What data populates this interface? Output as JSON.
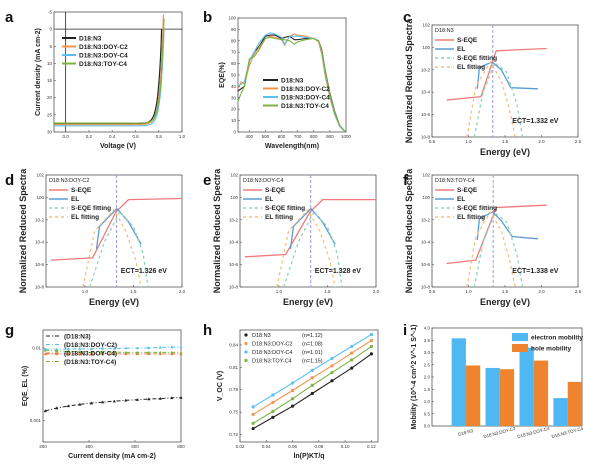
{
  "figure": {
    "panel_labels": [
      "a",
      "b",
      "c",
      "d",
      "e",
      "f",
      "g",
      "h",
      "i"
    ]
  },
  "chart_data": [
    {
      "id": "a",
      "type": "line",
      "xlabel": "Voltage (V)",
      "ylabel": "Current density (mA cm-2)",
      "xlim": [
        -0.1,
        1.0
      ],
      "ylim": [
        30,
        -5
      ],
      "x_ticks": [
        "0.0",
        "0.2",
        "0.4",
        "0.6",
        "0.8",
        "1.0"
      ],
      "y_ticks": [
        "-5",
        "0",
        "5",
        "10",
        "15",
        "20",
        "25",
        "30"
      ],
      "legend": "top-left",
      "series": [
        {
          "name": "D18:N3",
          "color": "#222222",
          "jsc": 27.6,
          "voc": 0.825
        },
        {
          "name": "D18:N3:DOY-C2",
          "color": "#f0944e",
          "jsc": 27.8,
          "voc": 0.836
        },
        {
          "name": "D18:N3:DOY-C4",
          "color": "#5bc0f0",
          "jsc": 28.2,
          "voc": 0.845
        },
        {
          "name": "D18:N3:TOY-C4",
          "color": "#7cb342",
          "jsc": 27.4,
          "voc": 0.842
        }
      ]
    },
    {
      "id": "b",
      "type": "line",
      "xlabel": "Wavelength(nm)",
      "ylabel": "EQE(%)",
      "xlim": [
        330,
        1000
      ],
      "ylim": [
        0,
        100
      ],
      "x_ticks": [
        "400",
        "500",
        "600",
        "700",
        "800",
        "900",
        "1000"
      ],
      "y_ticks": [
        "0",
        "10",
        "20",
        "30",
        "40",
        "50",
        "60",
        "70",
        "80",
        "90",
        "100"
      ],
      "legend": "center",
      "x": [
        330,
        350,
        370,
        400,
        430,
        460,
        500,
        530,
        560,
        600,
        620,
        650,
        680,
        700,
        750,
        800,
        830,
        850,
        870,
        900,
        930,
        960,
        990,
        1000
      ],
      "series": [
        {
          "name": "D18:N3",
          "color": "#222222",
          "values": [
            36,
            38,
            40,
            62,
            70,
            75,
            84,
            85,
            85,
            82,
            83,
            84,
            81,
            81,
            82,
            82,
            80,
            72,
            55,
            34,
            18,
            6,
            1,
            0
          ]
        },
        {
          "name": "D18:N3:DOY-C2",
          "color": "#f0944e",
          "values": [
            38,
            44,
            42,
            58,
            68,
            74,
            82,
            84,
            83,
            81,
            76,
            84,
            86,
            85,
            84,
            82,
            79,
            68,
            50,
            30,
            15,
            5,
            1,
            0
          ]
        },
        {
          "name": "D18:N3:DOY-C4",
          "color": "#5bc0f0",
          "values": [
            40,
            42,
            44,
            62,
            70,
            78,
            85,
            87,
            86,
            83,
            77,
            84,
            84,
            84,
            83,
            82,
            80,
            70,
            52,
            32,
            16,
            5,
            1,
            0
          ]
        },
        {
          "name": "D18:N3:TOY-C4",
          "color": "#7cb342",
          "values": [
            27,
            34,
            40,
            64,
            66,
            72,
            82,
            83,
            82,
            81,
            81,
            80,
            77,
            79,
            81,
            82,
            80,
            71,
            54,
            33,
            17,
            6,
            1,
            0
          ]
        }
      ]
    },
    {
      "id": "c",
      "type": "line",
      "title": "D18:N3",
      "xlabel": "Energy (eV)",
      "ylabel": "Normalized Reduced Spectra",
      "xlim": [
        0.5,
        2.5
      ],
      "ylim_log10": [
        -8,
        2
      ],
      "x_ticks": [
        "0.5",
        "1.0",
        "1.5",
        "2.0",
        "2.5"
      ],
      "y_ticks": [
        "10^-8",
        "10^-6",
        "10^-4",
        "10^-2",
        "10^0",
        "10^2"
      ],
      "ect_ev": 1.332,
      "annotation": "E_CT=1.332 eV",
      "legend": "top-left",
      "series": [
        {
          "name": "S-EQE",
          "style": "solid",
          "color": "#f07a7a",
          "x": [
            0.7,
            1.17,
            1.38,
            2.07
          ],
          "log10y": [
            -4.7,
            -4.4,
            -0.3,
            -0.1
          ]
        },
        {
          "name": "EL",
          "style": "solid",
          "color": "#5b9bd5",
          "x": [
            1.12,
            1.15,
            1.32,
            1.45,
            1.58,
            1.95
          ],
          "log10y": [
            -3.7,
            -1.8,
            -1.3,
            -2.0,
            -3.6,
            -3.7
          ]
        },
        {
          "name": "S-EQE fitting",
          "style": "dashed",
          "color": "#8fd3b5",
          "x": [
            1.08,
            1.2,
            1.36,
            1.52,
            1.66,
            1.74
          ],
          "log10y": [
            -8,
            -4,
            -1.4,
            -2.2,
            -5,
            -8
          ]
        },
        {
          "name": "EL fitting",
          "style": "dashed",
          "color": "#f5c07a",
          "x": [
            0.98,
            1.1,
            1.3,
            1.45,
            1.56,
            1.64
          ],
          "log10y": [
            -8,
            -3.5,
            -1.3,
            -3,
            -5.5,
            -8
          ]
        }
      ]
    },
    {
      "id": "d",
      "type": "line",
      "title": "D18:N3:DOY-C2",
      "xlabel": "Energy (eV)",
      "ylabel": "Normalized Reduced Spectra",
      "xlim": [
        0.6,
        2.0
      ],
      "ylim_log10": [
        -8,
        2
      ],
      "x_ticks": [
        "1.0",
        "1.5",
        "2.0"
      ],
      "y_ticks": [
        "10^-8",
        "10^-6",
        "10^-4",
        "10^-2",
        "10^0",
        "10^2"
      ],
      "ect_ev": 1.326,
      "annotation": "E_CT=1.326 eV",
      "legend": "top-left",
      "series": [
        {
          "name": "S-EQE",
          "style": "solid",
          "color": "#f07a7a",
          "x": [
            0.65,
            1.08,
            1.32,
            1.45,
            2.0
          ],
          "log10y": [
            -5.6,
            -5.4,
            -1.3,
            -0.2,
            -0.1
          ]
        },
        {
          "name": "EL",
          "style": "solid",
          "color": "#5b9bd5",
          "x": [
            1.12,
            1.15,
            1.33,
            1.45,
            1.58
          ],
          "log10y": [
            -4.6,
            -2.6,
            -1.0,
            -2.2,
            -4.2
          ]
        },
        {
          "name": "S-EQE fitting",
          "style": "dashed",
          "color": "#8fd3b5",
          "x": [
            1.05,
            1.2,
            1.36,
            1.5,
            1.6,
            1.65
          ],
          "log10y": [
            -8,
            -4,
            -1.3,
            -2.6,
            -5,
            -8
          ]
        },
        {
          "name": "EL fitting",
          "style": "dashed",
          "color": "#f5c07a",
          "x": [
            0.98,
            1.1,
            1.3,
            1.42,
            1.52,
            1.58
          ],
          "log10y": [
            -8,
            -3,
            -1.1,
            -3,
            -5.5,
            -8
          ]
        }
      ]
    },
    {
      "id": "e",
      "type": "line",
      "title": "D18:N3:DOY-C4",
      "xlabel": "Energy (eV)",
      "ylabel": "Normalized Reduced Spectra",
      "xlim": [
        0.6,
        2.0
      ],
      "ylim_log10": [
        -8,
        2
      ],
      "x_ticks": [
        "1.0",
        "1.5",
        "2.0"
      ],
      "y_ticks": [
        "10^-8",
        "10^-6",
        "10^-4",
        "10^-2",
        "10^0",
        "10^2"
      ],
      "ect_ev": 1.328,
      "annotation": "E_CT=1.328 eV",
      "legend": "top-left",
      "series": [
        {
          "name": "S-EQE",
          "style": "solid",
          "color": "#f07a7a",
          "x": [
            0.65,
            1.07,
            1.32,
            1.45,
            2.0
          ],
          "log10y": [
            -5.3,
            -5.1,
            -1.3,
            -0.2,
            -0.2
          ]
        },
        {
          "name": "EL",
          "style": "solid",
          "color": "#5b9bd5",
          "x": [
            1.12,
            1.15,
            1.33,
            1.45,
            1.58
          ],
          "log10y": [
            -4.6,
            -2.6,
            -1.0,
            -2.2,
            -4.2
          ]
        },
        {
          "name": "S-EQE fitting",
          "style": "dashed",
          "color": "#8fd3b5",
          "x": [
            1.05,
            1.2,
            1.36,
            1.5,
            1.6,
            1.65
          ],
          "log10y": [
            -8,
            -4,
            -1.3,
            -2.6,
            -5,
            -8
          ]
        },
        {
          "name": "EL fitting",
          "style": "dashed",
          "color": "#f5c07a",
          "x": [
            0.98,
            1.1,
            1.3,
            1.42,
            1.52,
            1.58
          ],
          "log10y": [
            -8,
            -3,
            -1.1,
            -3,
            -5.5,
            -8
          ]
        }
      ]
    },
    {
      "id": "f",
      "type": "line",
      "title": "D18:N3:TOY-C4",
      "xlabel": "Energy (eV)",
      "ylabel": "Normalized Reduced Spectra",
      "xlim": [
        0.5,
        2.5
      ],
      "ylim_log10": [
        -8,
        2
      ],
      "x_ticks": [
        "0.5",
        "1.0",
        "1.5",
        "2.0",
        "2.5"
      ],
      "y_ticks": [
        "10^-8",
        "10^-6",
        "10^-4",
        "10^-2",
        "10^0",
        "10^2"
      ],
      "ect_ev": 1.338,
      "annotation": "E_CT=1.338 eV",
      "legend": "top-left",
      "series": [
        {
          "name": "S-EQE",
          "style": "solid",
          "color": "#f07a7a",
          "x": [
            0.7,
            1.1,
            1.38,
            2.07
          ],
          "log10y": [
            -5.9,
            -5.6,
            -0.9,
            -0.7
          ]
        },
        {
          "name": "EL",
          "style": "solid",
          "color": "#5b9bd5",
          "x": [
            1.12,
            1.15,
            1.33,
            1.45,
            1.6,
            1.95
          ],
          "log10y": [
            -3.8,
            -1.9,
            -1.3,
            -2.1,
            -3.5,
            -3.7
          ]
        },
        {
          "name": "S-EQE fitting",
          "style": "dashed",
          "color": "#8fd3b5",
          "x": [
            1.08,
            1.2,
            1.36,
            1.52,
            1.66,
            1.74
          ],
          "log10y": [
            -8,
            -4,
            -1.4,
            -2.2,
            -5,
            -8
          ]
        },
        {
          "name": "EL fitting",
          "style": "dashed",
          "color": "#f5c07a",
          "x": [
            0.98,
            1.1,
            1.3,
            1.45,
            1.56,
            1.64
          ],
          "log10y": [
            -8,
            -3.5,
            -1.3,
            -3,
            -5.5,
            -8
          ]
        }
      ]
    },
    {
      "id": "g",
      "type": "line",
      "xlabel": "Current density (mA cm-2)",
      "ylabel": "EQE_EL (%)",
      "xlim": [
        200,
        800
      ],
      "ylim_log10": [
        -3.3,
        -1.75
      ],
      "x_ticks": [
        "200",
        "400",
        "600",
        "800"
      ],
      "y_ticks": [
        "0.001",
        "0.01"
      ],
      "legend": "top-left",
      "x": [
        210,
        260,
        310,
        360,
        410,
        460,
        510,
        560,
        610,
        660,
        710,
        760,
        800
      ],
      "series": [
        {
          "name": "(D18:N3)",
          "color": "#222222",
          "values": [
            0.00135,
            0.00148,
            0.00158,
            0.00166,
            0.00173,
            0.00179,
            0.00184,
            0.00189,
            0.00193,
            0.00197,
            0.002,
            0.00204,
            0.00207
          ]
        },
        {
          "name": "(D18:N3:DOY-C2)",
          "color": "#5bc0f0",
          "values": [
            0.0097,
            0.0096,
            0.0097,
            0.0098,
            0.0098,
            0.0099,
            0.0099,
            0.01,
            0.01,
            0.0101,
            0.0102,
            0.0103,
            0.0104
          ]
        },
        {
          "name": "(D18:N3:DOY-C4)",
          "color": "#f07a3a",
          "values": [
            0.0083,
            0.0083,
            0.0083,
            0.0083,
            0.0083,
            0.0083,
            0.0083,
            0.0083,
            0.0083,
            0.0083,
            0.0083,
            0.0083,
            0.0083
          ]
        },
        {
          "name": "(D18:N3:TOY-C4)",
          "color": "#7cb342",
          "values": [
            0.0093,
            0.0091,
            0.009,
            0.0089,
            0.0088,
            0.0088,
            0.0088,
            0.0087,
            0.0087,
            0.0087,
            0.0087,
            0.0087,
            0.0087
          ]
        }
      ]
    },
    {
      "id": "h",
      "type": "scatter",
      "xlabel": "ln(P)KT/q",
      "ylabel": "V_OC (V)",
      "xlim": [
        0.02,
        0.125
      ],
      "ylim": [
        0.71,
        0.86
      ],
      "x_ticks": [
        "0.02",
        "0.04",
        "0.06",
        "0.08",
        "0.10",
        "0.12"
      ],
      "y_ticks": [
        "0.72",
        "0.75",
        "0.78",
        "0.81",
        "0.84"
      ],
      "legend": "top-left",
      "x": [
        0.03,
        0.045,
        0.06,
        0.075,
        0.09,
        0.105,
        0.12
      ],
      "series": [
        {
          "name": "D18:N3",
          "n_label": "(n=1.12)",
          "color": "#222222",
          "values": [
            0.728,
            0.743,
            0.758,
            0.775,
            0.792,
            0.809,
            0.828
          ]
        },
        {
          "name": "D18:N3:DOY-C2",
          "n_label": "(n=1.08)",
          "color": "#f0944e",
          "values": [
            0.747,
            0.763,
            0.779,
            0.796,
            0.812,
            0.829,
            0.846
          ]
        },
        {
          "name": "D18:N3:DOY-C4",
          "n_label": "(n=1.01)",
          "color": "#5bc0f0",
          "values": [
            0.757,
            0.773,
            0.789,
            0.806,
            0.822,
            0.838,
            0.854
          ]
        },
        {
          "name": "D18:N3:TOY-C4",
          "n_label": "(n=1.15)",
          "color": "#7cb342",
          "values": [
            0.735,
            0.751,
            0.768,
            0.786,
            0.803,
            0.82,
            0.838
          ]
        }
      ]
    },
    {
      "id": "i",
      "type": "bar",
      "ylabel": "Mobility (10^-4 cm^2 V^-1 S^-1)",
      "ylim": [
        0,
        4.0
      ],
      "y_ticks": [
        "0.0",
        "0.5",
        "1.0",
        "1.5",
        "2.0",
        "2.5",
        "3.0",
        "3.5",
        "4.0"
      ],
      "categories": [
        "D18:N3",
        "D18:N3:DOY-C2",
        "D18:N3:DOY-C4",
        "D18:N3:TOY-C4"
      ],
      "legend": "top-right",
      "series": [
        {
          "name": "electron mobility",
          "color": "#4fb8f2",
          "values": [
            3.58,
            2.37,
            3.2,
            1.14
          ]
        },
        {
          "name": "hole mobility",
          "color": "#f0842e",
          "values": [
            2.47,
            2.32,
            2.67,
            1.8
          ]
        }
      ]
    }
  ]
}
